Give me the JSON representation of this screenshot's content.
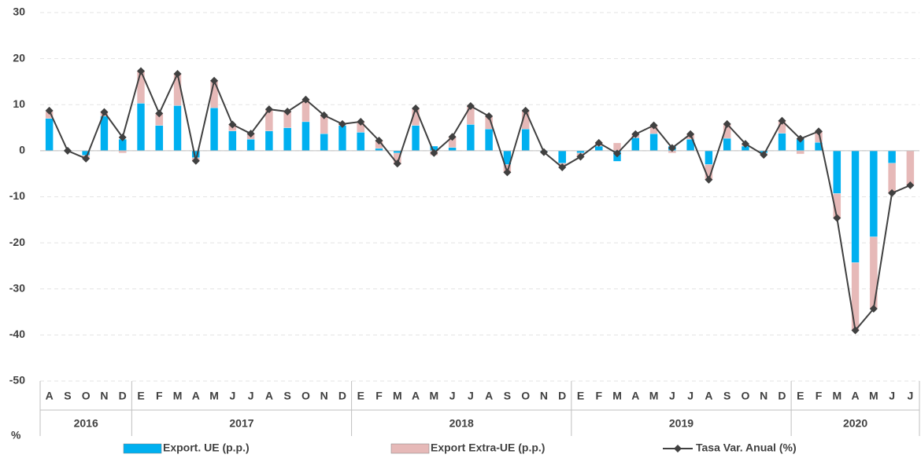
{
  "chart_data": {
    "type": "bar_line",
    "category_groups": [
      {
        "label": "2016",
        "months": [
          "A",
          "S",
          "O",
          "N",
          "D"
        ]
      },
      {
        "label": "2017",
        "months": [
          "E",
          "F",
          "M",
          "A",
          "M",
          "J",
          "J",
          "A",
          "S",
          "O",
          "N",
          "D"
        ]
      },
      {
        "label": "2018",
        "months": [
          "E",
          "F",
          "M",
          "A",
          "M",
          "J",
          "J",
          "A",
          "S",
          "O",
          "N",
          "D"
        ]
      },
      {
        "label": "2019",
        "months": [
          "E",
          "F",
          "M",
          "A",
          "M",
          "J",
          "J",
          "A",
          "S",
          "O",
          "N",
          "D"
        ]
      },
      {
        "label": "2020",
        "months": [
          "E",
          "F",
          "M",
          "A",
          "M",
          "J",
          "J"
        ]
      }
    ],
    "series": [
      {
        "name": "Export. UE (p.p.)",
        "type": "bar",
        "color": "#00b0f0",
        "values": [
          7,
          0,
          -1,
          7.5,
          2.5,
          10.3,
          5.5,
          9.8,
          -1.5,
          9.3,
          4.3,
          2.5,
          4.3,
          5,
          6.3,
          3.7,
          5.5,
          4,
          0.5,
          -0.5,
          5.5,
          1,
          0.7,
          5.7,
          4.7,
          -3,
          4.7,
          -0.2,
          -2.7,
          -0.5,
          1,
          -2.3,
          2.8,
          3.7,
          1,
          2.5,
          -3,
          2.7,
          1,
          -0.5,
          3.8,
          2.5,
          1.8,
          -9.3,
          -24.3,
          -18.7,
          -2.7,
          0
        ]
      },
      {
        "name": "Export Extra-UE (p.p.)",
        "type": "bar",
        "color": "#e6b9b8",
        "values": [
          1.5,
          0,
          -0.7,
          1,
          -0.5,
          7,
          2.5,
          7,
          -0.7,
          6,
          1.5,
          1.3,
          4.7,
          3.5,
          4.8,
          4,
          0.3,
          2.3,
          1.7,
          -2.5,
          3.7,
          -1,
          2.3,
          4,
          2.8,
          -1.7,
          4,
          -0.1,
          -0.7,
          -0.8,
          0.7,
          1.7,
          0.8,
          1.8,
          -0.5,
          1,
          -3.3,
          3,
          0.5,
          -0.4,
          2.7,
          -0.7,
          2.4,
          -5.3,
          -14.7,
          -15.6,
          -6.5,
          -7.5
        ]
      },
      {
        "name": "Tasa Var. Anual (%)",
        "type": "line",
        "color": "#404040",
        "values": [
          8.7,
          0,
          -1.7,
          8.4,
          2.9,
          17.3,
          8.1,
          16.7,
          -2.2,
          15.2,
          5.7,
          3.7,
          9,
          8.5,
          11.1,
          7.7,
          5.8,
          6.3,
          2.2,
          -2.8,
          9.2,
          -0.5,
          3,
          9.7,
          7.5,
          -4.7,
          8.7,
          -0.3,
          -3.6,
          -1.3,
          1.7,
          -0.6,
          3.6,
          5.5,
          0.6,
          3.6,
          -6.3,
          5.8,
          1.5,
          -0.9,
          6.5,
          2.6,
          4.2,
          -14.6,
          -39,
          -34.3,
          -9.2,
          -7.5
        ]
      }
    ],
    "y_unit": "%",
    "ylim": [
      -50,
      30
    ],
    "yticks": [
      -50,
      -40,
      -30,
      -20,
      -10,
      0,
      10,
      20,
      30
    ],
    "grid": true
  }
}
